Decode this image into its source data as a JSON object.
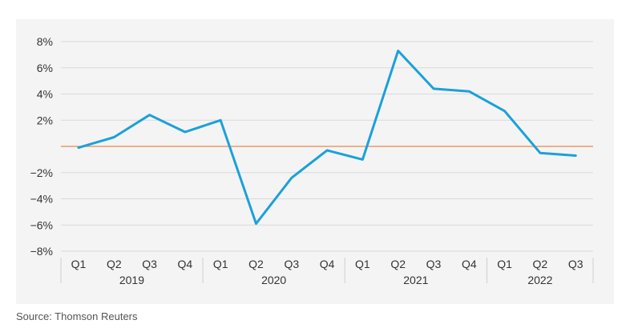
{
  "source_text": "Source: Thomson Reuters",
  "colors": {
    "line": "#1ba1d9",
    "zero_line": "#e8894a",
    "grid": "#d9d9d9",
    "panel": "#f4f4f4",
    "axis_text": "#333333"
  },
  "chart_data": {
    "type": "line",
    "title": "",
    "xlabel": "",
    "ylabel": "",
    "ylim": [
      -8,
      8
    ],
    "y_ticks": [
      8,
      6,
      4,
      2,
      -2,
      -4,
      -6,
      -8
    ],
    "y_tick_labels": [
      "8%",
      "6%",
      "4%",
      "2%",
      "−2%",
      "−4%",
      "−6%",
      "−8%"
    ],
    "grid": true,
    "categories": [
      "Q1",
      "Q2",
      "Q3",
      "Q4",
      "Q1",
      "Q2",
      "Q3",
      "Q4",
      "Q1",
      "Q2",
      "Q3",
      "Q4",
      "Q1",
      "Q2",
      "Q3"
    ],
    "years": [
      {
        "label": "2019",
        "quarters": 4
      },
      {
        "label": "2020",
        "quarters": 4
      },
      {
        "label": "2021",
        "quarters": 4
      },
      {
        "label": "2022",
        "quarters": 3
      }
    ],
    "series": [
      {
        "values": [
          -0.1,
          0.7,
          2.4,
          1.1,
          2.0,
          -5.9,
          -2.4,
          -0.3,
          -1.0,
          7.3,
          4.4,
          4.2,
          2.7,
          -0.5,
          -0.7
        ]
      }
    ]
  }
}
